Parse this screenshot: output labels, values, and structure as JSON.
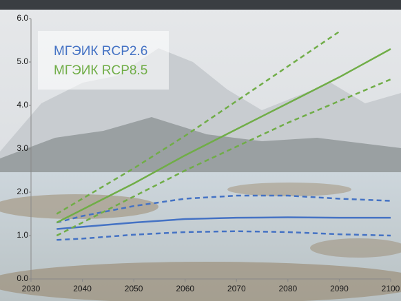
{
  "chart_data": {
    "type": "line",
    "x": [
      2035,
      2040,
      2050,
      2060,
      2070,
      2080,
      2090,
      2100
    ],
    "series": [
      {
        "name": "МГЭИК RCP2.6",
        "color": "#4472c4",
        "values": [
          1.15,
          1.2,
          1.3,
          1.38,
          1.41,
          1.42,
          1.41,
          1.41
        ],
        "upper": [
          1.3,
          1.45,
          1.68,
          1.85,
          1.92,
          1.92,
          1.85,
          1.8
        ],
        "lower": [
          0.9,
          0.93,
          1.02,
          1.08,
          1.1,
          1.08,
          1.03,
          1.0
        ]
      },
      {
        "name": "МГЭИК RCP8.5",
        "color": "#70ad47",
        "values": [
          1.3,
          1.6,
          2.2,
          2.85,
          3.45,
          4.05,
          4.65,
          5.3
        ],
        "upper": [
          1.5,
          1.85,
          2.55,
          3.3,
          4.1,
          4.9,
          5.7,
          null
        ],
        "lower": [
          1.0,
          1.3,
          1.9,
          2.5,
          3.05,
          3.6,
          4.1,
          4.6
        ]
      }
    ],
    "xlim": [
      2030,
      2100
    ],
    "xticks": [
      2030,
      2040,
      2050,
      2060,
      2070,
      2080,
      2090,
      2100
    ],
    "ylim": [
      0,
      6
    ],
    "yticks": [
      {
        "value": 0,
        "label": "0.0"
      },
      {
        "value": 1,
        "label": "1.0"
      },
      {
        "value": 2,
        "label": "2.0"
      },
      {
        "value": 3,
        "label": "3.0"
      },
      {
        "value": 4,
        "label": "4.0"
      },
      {
        "value": 5,
        "label": "5.0"
      },
      {
        "value": 6,
        "label": "6.0"
      }
    ],
    "grid": false
  }
}
